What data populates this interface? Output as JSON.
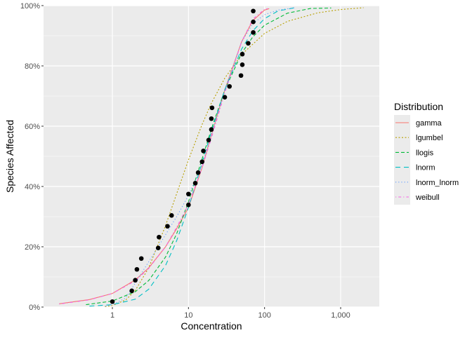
{
  "chart_data": {
    "type": "line",
    "title": "",
    "xlabel": "Concentration",
    "ylabel": "Species Affected",
    "x_scale": "log10",
    "xlim": [
      0.15,
      2500
    ],
    "ylim": [
      0,
      100
    ],
    "x_ticks": [
      1,
      10,
      100,
      1000
    ],
    "x_tick_labels": [
      "1",
      "10",
      "100",
      "1,000"
    ],
    "y_ticks": [
      0,
      20,
      40,
      60,
      80,
      100
    ],
    "y_tick_labels": [
      "0%",
      "20%",
      "40%",
      "60%",
      "80%",
      "100%"
    ],
    "grid": true,
    "background": "#EBEBEB",
    "legend": {
      "title": "Distribution",
      "placement": "right"
    },
    "points": {
      "color": "#000000",
      "x": [
        1.0,
        1.8,
        2.0,
        2.1,
        2.4,
        4.0,
        4.1,
        5.3,
        6.0,
        10,
        10,
        12.3,
        13.4,
        15.1,
        15.7,
        18.4,
        20,
        20,
        20.4,
        30,
        34.6,
        49,
        51,
        51,
        61,
        71,
        71,
        71
      ],
      "y": [
        1.8,
        5.4,
        8.9,
        12.5,
        16.1,
        19.6,
        23.2,
        26.8,
        30.4,
        33.9,
        37.5,
        41.1,
        44.6,
        48.2,
        51.8,
        55.4,
        58.9,
        62.5,
        66.1,
        69.6,
        73.2,
        76.8,
        80.4,
        83.9,
        87.5,
        91.1,
        94.6,
        98.2
      ]
    },
    "series": [
      {
        "name": "gamma",
        "color": "#F8766D",
        "linetype": "solid",
        "x": [
          0.2,
          0.5,
          1,
          2,
          3,
          5,
          7,
          10,
          15,
          20,
          30,
          50,
          70,
          100,
          115
        ],
        "y": [
          1.1,
          2.5,
          4.5,
          9,
          13,
          20,
          26,
          33,
          46,
          57,
          72,
          88,
          95,
          98.5,
          99
        ]
      },
      {
        "name": "lgumbel",
        "color": "#B79F00",
        "linetype": "dotted",
        "x": [
          0.8,
          1,
          1.5,
          2,
          3,
          5,
          7,
          10,
          15,
          20,
          30,
          50,
          100,
          200,
          500,
          1000,
          2000
        ],
        "y": [
          0.16,
          0.5,
          2.4,
          5.5,
          13,
          27,
          37.6,
          48.8,
          60.4,
          67.6,
          75.9,
          83.8,
          90.8,
          94.8,
          97.6,
          98.7,
          99.3
        ]
      },
      {
        "name": "llogis",
        "color": "#00BA38",
        "linetype": "dashed",
        "x": [
          0.45,
          1,
          2,
          3,
          5,
          7,
          10,
          15,
          20,
          30,
          50,
          70,
          100,
          200,
          400,
          750
        ],
        "y": [
          0.8,
          2.0,
          5.1,
          8.8,
          16.6,
          24.3,
          34.9,
          48.9,
          59,
          72,
          84.2,
          89.6,
          93.5,
          97.5,
          99.05,
          99.2
        ]
      },
      {
        "name": "lnorm",
        "color": "#00BFC4",
        "linetype": "longdash",
        "x": [
          0.5,
          1,
          2,
          3,
          5,
          7,
          10,
          15,
          20,
          30,
          50,
          70,
          100,
          150,
          250
        ],
        "y": [
          0.3,
          0.8,
          2.6,
          5.9,
          13.8,
          22,
          33,
          47.6,
          58.2,
          72.1,
          85.6,
          91.6,
          95.7,
          98.2,
          99.3
        ]
      },
      {
        "name": "lnorm_lnorm",
        "color": "#619CFF",
        "linetype": "dotted-fine",
        "x": [
          0.8,
          1,
          1.5,
          2,
          3,
          5,
          7,
          10,
          15,
          20,
          30,
          50,
          70,
          100,
          150,
          250
        ],
        "y": [
          0.3,
          0.8,
          3,
          8,
          15,
          24,
          30,
          37,
          47,
          57,
          72,
          88,
          94,
          97,
          98.5,
          99.3
        ]
      },
      {
        "name": "weibull",
        "color": "#F564E3",
        "linetype": "dotdash",
        "x": [
          0.2,
          0.5,
          1,
          2,
          3,
          5,
          7,
          10,
          15,
          20,
          30,
          50,
          70,
          100,
          110
        ],
        "y": [
          1.0,
          2.4,
          4.5,
          8.7,
          12.8,
          20,
          26.5,
          34,
          46,
          56,
          71,
          88,
          95.5,
          98.8,
          99
        ]
      }
    ]
  }
}
